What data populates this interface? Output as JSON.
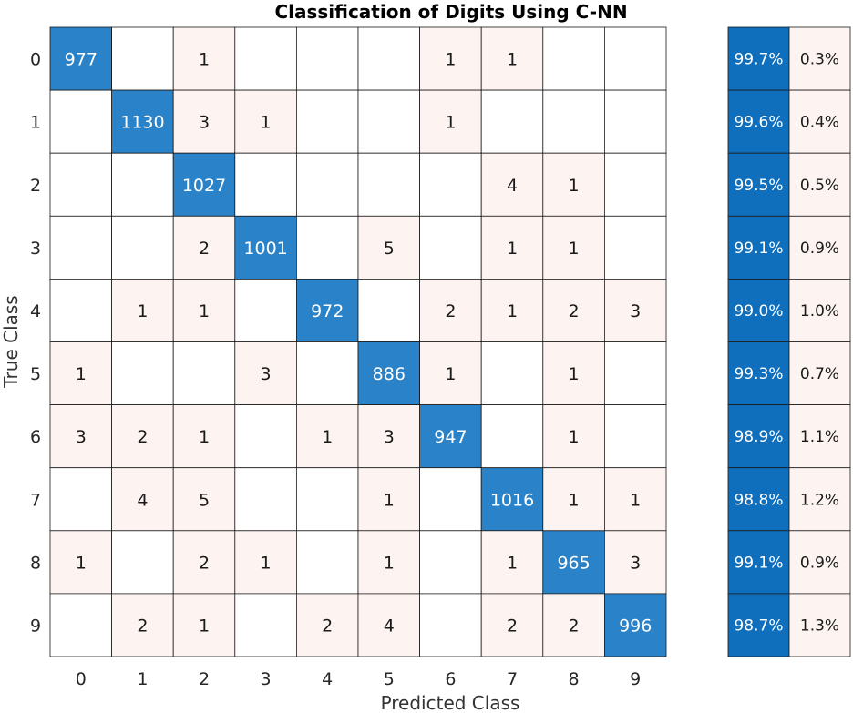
{
  "chart_data": {
    "type": "heatmap",
    "title": "Classification of Digits Using C-NN",
    "xlabel": "Predicted Class",
    "ylabel": "True Class",
    "row_labels": [
      "0",
      "1",
      "2",
      "3",
      "4",
      "5",
      "6",
      "7",
      "8",
      "9"
    ],
    "col_labels": [
      "0",
      "1",
      "2",
      "3",
      "4",
      "5",
      "6",
      "7",
      "8",
      "9"
    ],
    "matrix": [
      [
        977,
        0,
        1,
        0,
        0,
        0,
        1,
        1,
        0,
        0
      ],
      [
        0,
        1130,
        3,
        1,
        0,
        0,
        1,
        0,
        0,
        0
      ],
      [
        0,
        0,
        1027,
        0,
        0,
        0,
        0,
        4,
        1,
        0
      ],
      [
        0,
        0,
        2,
        1001,
        0,
        5,
        0,
        1,
        1,
        0
      ],
      [
        0,
        1,
        1,
        0,
        972,
        0,
        2,
        1,
        2,
        3
      ],
      [
        1,
        0,
        0,
        3,
        0,
        886,
        1,
        0,
        1,
        0
      ],
      [
        3,
        2,
        1,
        0,
        1,
        3,
        947,
        0,
        1,
        0
      ],
      [
        0,
        4,
        5,
        0,
        0,
        1,
        0,
        1016,
        1,
        1
      ],
      [
        1,
        0,
        2,
        1,
        0,
        1,
        0,
        1,
        965,
        3
      ],
      [
        0,
        2,
        1,
        0,
        2,
        4,
        0,
        2,
        2,
        996
      ]
    ],
    "row_summary": {
      "correct": [
        "99.7%",
        "99.6%",
        "99.5%",
        "99.1%",
        "99.0%",
        "99.3%",
        "98.9%",
        "98.8%",
        "99.1%",
        "98.7%"
      ],
      "incorrect": [
        "0.3%",
        "0.4%",
        "0.5%",
        "0.9%",
        "1.0%",
        "0.7%",
        "1.1%",
        "1.2%",
        "0.9%",
        "1.3%"
      ]
    },
    "colors": {
      "diagonal": "#2a83c9",
      "off_diagonal": "#fdf4f1",
      "summary_correct": "#0f6fbd",
      "summary_incorrect": "#fdf4f1",
      "grid": "#1a1a1a"
    }
  }
}
